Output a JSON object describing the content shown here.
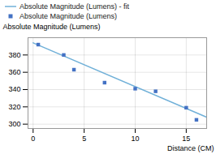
{
  "chart_data": {
    "type": "scatter",
    "xlabel": "Distance (CM)",
    "ylabel": "Absolute Magnitude (Lumens)",
    "series": [
      {
        "name": "Absolute Magnitude (Lumens) - fit",
        "type": "line",
        "color": "#70b0d8",
        "line_style": "solid",
        "x": [
          0,
          17
        ],
        "values": [
          394,
          308
        ]
      },
      {
        "name": "Absolute Magnitude (Lumens)",
        "type": "scatter",
        "color": "#4472c4",
        "marker": "square",
        "x": [
          0.5,
          3,
          4,
          7,
          10,
          12,
          15,
          16
        ],
        "values": [
          392,
          380,
          363,
          348,
          341,
          338,
          319,
          305
        ]
      }
    ],
    "xlim": [
      -0.5,
      17
    ],
    "ylim": [
      295,
      400
    ],
    "xticks": [
      0,
      5,
      10,
      15
    ],
    "yticks": [
      300,
      320,
      340,
      360,
      380
    ],
    "grid": true,
    "legend": "top"
  }
}
